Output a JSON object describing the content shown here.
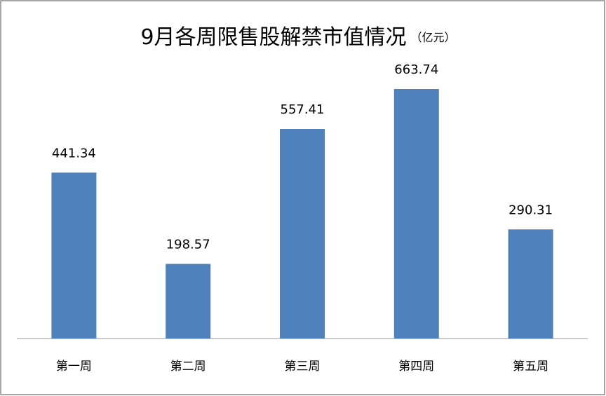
{
  "chart_data": {
    "type": "bar",
    "title": "9月各周限售股解禁市值情况",
    "subtitle": "（亿元）",
    "categories": [
      "第一周",
      "第二周",
      "第三周",
      "第四周",
      "第五周"
    ],
    "values": [
      441.34,
      198.57,
      557.41,
      663.74,
      290.31
    ],
    "color": "#4f81bd"
  }
}
